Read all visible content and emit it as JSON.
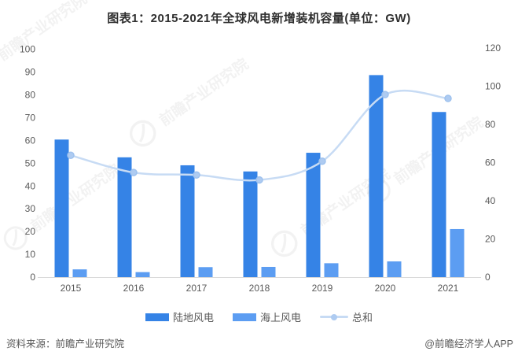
{
  "title": "图表1：2015-2021年全球风电新增装机容量(单位：GW)",
  "source": "资料来源：前瞻产业研究院",
  "credit": "@前瞻经济学人APP",
  "watermark": "前瞻产业研究院",
  "colors": {
    "onshore": "#3583E6",
    "offshore": "#5C9DF2",
    "line": "#C7DBF4",
    "marker_fill": "#AECBF1",
    "marker_stroke": "#9FC2EE",
    "axis_line": "#D9D9D9",
    "tick_text": "#595959",
    "title_text": "#2F2F2F",
    "source_text": "#595959"
  },
  "chart_data": {
    "type": "bar",
    "subtype": "bar+line combo, dual axis",
    "title": "图表1：2015-2021年全球风电新增装机容量(单位：GW)",
    "categories": [
      "2015",
      "2016",
      "2017",
      "2018",
      "2019",
      "2020",
      "2021"
    ],
    "series": [
      {
        "name": "陆地风电",
        "key": "onshore-wind",
        "type": "bar",
        "axis": "left",
        "values": [
          60.4,
          52.6,
          49.1,
          46.4,
          54.6,
          88.7,
          72.5
        ]
      },
      {
        "name": "海上风电",
        "key": "offshore-wind",
        "type": "bar",
        "axis": "left",
        "values": [
          3.4,
          2.2,
          4.4,
          4.5,
          6.1,
          6.9,
          21.1
        ]
      },
      {
        "name": "总和",
        "key": "total",
        "type": "line",
        "axis": "right",
        "values": [
          63.8,
          54.8,
          53.5,
          50.9,
          60.7,
          95.6,
          93.6
        ]
      }
    ],
    "left_axis": {
      "min": 0,
      "max": 100,
      "step": 10
    },
    "right_axis": {
      "min": 0,
      "max": 120,
      "step": 20
    },
    "unit": "GW",
    "grid": false,
    "legend_position": "bottom"
  }
}
